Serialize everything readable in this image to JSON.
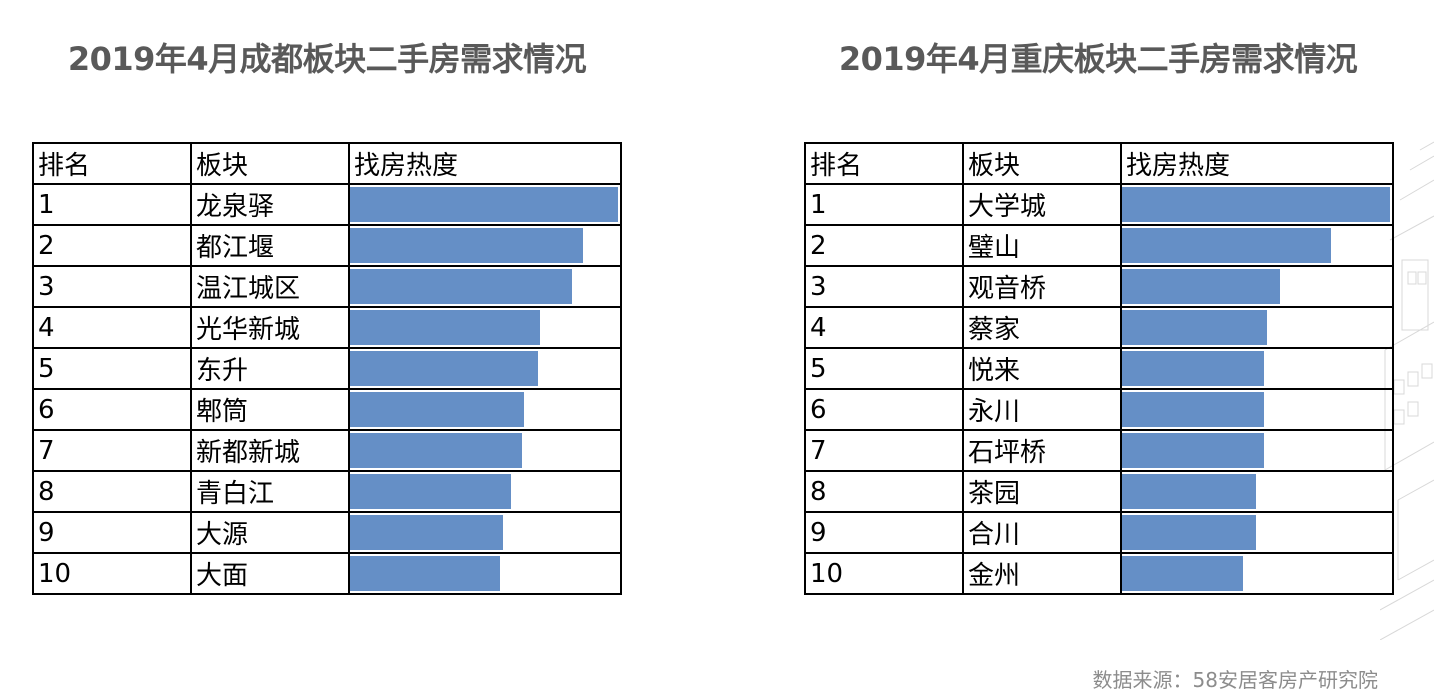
{
  "chart_data": [
    {
      "type": "bar",
      "orientation": "horizontal",
      "title": "2019年4月成都板块二手房需求情况",
      "columns": [
        "排名",
        "板块",
        "找房热度"
      ],
      "ranks": [
        "1",
        "2",
        "3",
        "4",
        "5",
        "6",
        "7",
        "8",
        "9",
        "10"
      ],
      "categories": [
        "龙泉驿",
        "都江堰",
        "温江城区",
        "光华新城",
        "东升",
        "郫筒",
        "新都新城",
        "青白江",
        "大源",
        "大面"
      ],
      "values": [
        1.0,
        0.87,
        0.83,
        0.71,
        0.7,
        0.65,
        0.64,
        0.6,
        0.57,
        0.56
      ],
      "xlim": [
        0,
        1
      ],
      "color": "#658fc6"
    },
    {
      "type": "bar",
      "orientation": "horizontal",
      "title": "2019年4月重庆板块二手房需求情况",
      "columns": [
        "排名",
        "板块",
        "找房热度"
      ],
      "ranks": [
        "1",
        "2",
        "3",
        "4",
        "5",
        "6",
        "7",
        "8",
        "9",
        "10"
      ],
      "categories": [
        "大学城",
        "璧山",
        "观音桥",
        "蔡家",
        "悦来",
        "永川",
        "石坪桥",
        "茶园",
        "合川",
        "金州"
      ],
      "values": [
        1.0,
        0.78,
        0.59,
        0.54,
        0.53,
        0.53,
        0.53,
        0.5,
        0.5,
        0.45
      ],
      "xlim": [
        0,
        1
      ],
      "color": "#658fc6"
    }
  ],
  "source": "数据来源：58安居客房产研究院"
}
